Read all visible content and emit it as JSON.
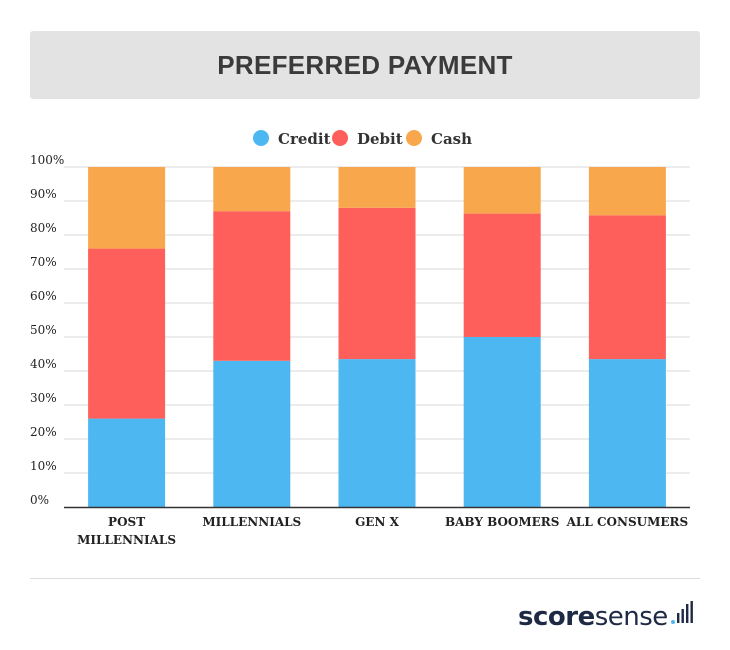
{
  "chart_data": {
    "type": "bar",
    "stacked": true,
    "title": "PREFERRED PAYMENT",
    "categories": [
      [
        "POST",
        "MILLENNIALS"
      ],
      [
        "MILLENNIALS"
      ],
      [
        "GEN X"
      ],
      [
        "BABY BOOMERS"
      ],
      [
        "ALL CONSUMERS"
      ]
    ],
    "series": [
      {
        "name": "Credit",
        "color": "#4db7f2",
        "values": [
          26,
          43,
          43.5,
          50,
          43.5
        ]
      },
      {
        "name": "Debit",
        "color": "#fe5f5a",
        "values": [
          50,
          44,
          44.5,
          36.3,
          42.3
        ]
      },
      {
        "name": "Cash",
        "color": "#f8a74c",
        "values": [
          24,
          13,
          12,
          13.7,
          14.2
        ]
      }
    ],
    "y_ticks": [
      "0%",
      "10%",
      "20%",
      "30%",
      "40%",
      "50%",
      "60%",
      "70%",
      "80%",
      "90%",
      "100%"
    ],
    "ylim": [
      0,
      100
    ],
    "grid": true,
    "legend_position": "top-center"
  },
  "brand": {
    "logo_score": "score",
    "logo_sense": "sense",
    "logo_color": "#1e2a44",
    "accent_color": "#4db7f2"
  }
}
